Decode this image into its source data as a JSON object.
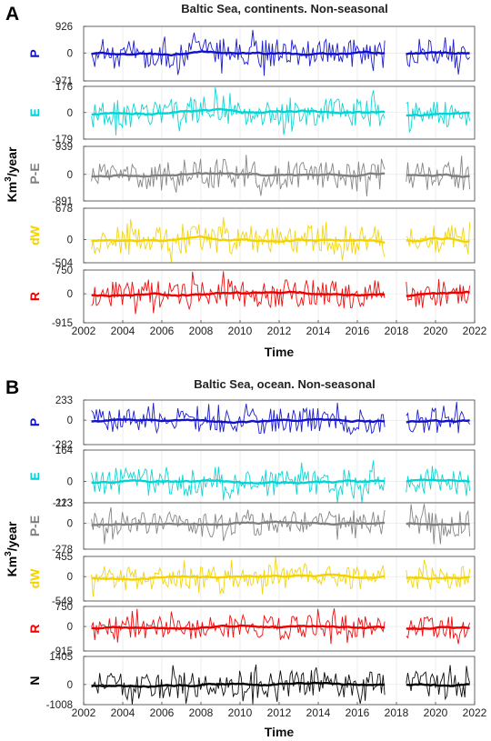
{
  "chart_data": [
    {
      "panel_label": "A",
      "title": "Baltic Sea, continents. Non-seasonal",
      "type": "line",
      "xlabel": "Time",
      "ylabel": "Km³/year",
      "ylabel_base": "Km",
      "ylabel_sup": "3",
      "ylabel_rest": "/year",
      "xlim": [
        2002,
        2022
      ],
      "xticks": [
        "2002",
        "2004",
        "2006",
        "2008",
        "2010",
        "2012",
        "2014",
        "2016",
        "2018",
        "2020",
        "2022"
      ],
      "grid": true,
      "data_gap": [
        2017.4,
        2018.5
      ],
      "series": [
        {
          "name": "P",
          "color": "#1111cc",
          "ylim": [
            -971,
            926
          ],
          "yticks": [
            "926",
            "0",
            "-971"
          ]
        },
        {
          "name": "E",
          "color": "#00d4d4",
          "ylim": [
            -179,
            176
          ],
          "yticks": [
            "176",
            "0",
            "-179"
          ]
        },
        {
          "name": "P-E",
          "color": "#808080",
          "ylim": [
            -891,
            939
          ],
          "yticks": [
            "939",
            "0",
            "-891"
          ]
        },
        {
          "name": "dW",
          "color": "#f2d300",
          "ylim": [
            -504,
            678
          ],
          "yticks": [
            "678",
            "0",
            "-504"
          ]
        },
        {
          "name": "R",
          "color": "#ee0000",
          "ylim": [
            -915,
            750
          ],
          "yticks": [
            "750",
            "0",
            "-915"
          ]
        }
      ]
    },
    {
      "panel_label": "B",
      "title": "Baltic Sea, ocean. Non-seasonal",
      "type": "line",
      "xlabel": "Time",
      "ylabel": "Km³/year",
      "ylabel_base": "Km",
      "ylabel_sup": "3",
      "ylabel_rest": "/year",
      "xlim": [
        2002,
        2022
      ],
      "xticks": [
        "2002",
        "2004",
        "2006",
        "2008",
        "2010",
        "2012",
        "2014",
        "2016",
        "2018",
        "2020",
        "2022"
      ],
      "grid": true,
      "data_gap": [
        2017.4,
        2018.5
      ],
      "series": [
        {
          "name": "P",
          "color": "#1111cc",
          "ylim": [
            -282,
            233
          ],
          "yticks": [
            "233",
            "0",
            "-282"
          ]
        },
        {
          "name": "E",
          "color": "#00d4d4",
          "ylim": [
            -113,
            164
          ],
          "yticks": [
            "164",
            "0",
            "-113"
          ]
        },
        {
          "name": "P-E",
          "color": "#808080",
          "ylim": [
            -278,
            223
          ],
          "yticks": [
            "223",
            "0",
            "-278"
          ]
        },
        {
          "name": "dW",
          "color": "#f2d300",
          "ylim": [
            -549,
            455
          ],
          "yticks": [
            "455",
            "0",
            "-549"
          ]
        },
        {
          "name": "R",
          "color": "#ee0000",
          "ylim": [
            -915,
            750
          ],
          "yticks": [
            "750",
            "0",
            "-915"
          ]
        },
        {
          "name": "N",
          "color": "#000000",
          "ylim": [
            -1008,
            1405
          ],
          "yticks": [
            "1405",
            "0",
            "-1008"
          ]
        }
      ]
    }
  ]
}
